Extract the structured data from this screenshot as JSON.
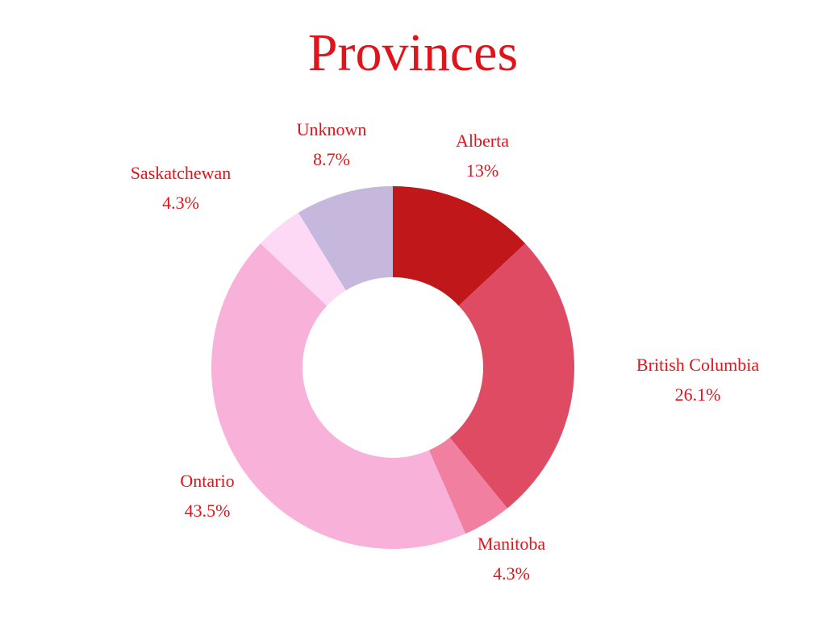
{
  "chart_data": {
    "type": "donut",
    "title": "Provinces",
    "categories": [
      "Alberta",
      "British Columbia",
      "Manitoba",
      "Ontario",
      "Saskatchewan",
      "Unknown"
    ],
    "values": [
      13,
      26.1,
      4.3,
      43.5,
      4.3,
      8.7
    ],
    "value_labels": [
      "13%",
      "26.1%",
      "4.3%",
      "43.5%",
      "4.3%",
      "8.7%"
    ],
    "colors": [
      "#c0171b",
      "#e04b64",
      "#f07fa0",
      "#f8b2da",
      "#fdd9f5",
      "#c5b8dc"
    ]
  }
}
